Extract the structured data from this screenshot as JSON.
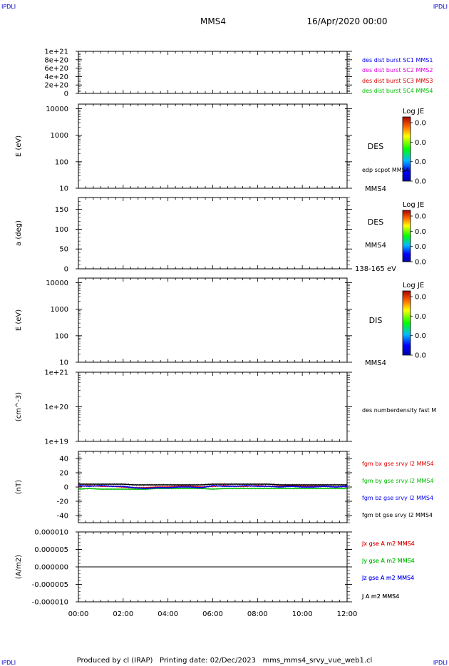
{
  "corner_labels": {
    "top_left": "IPDLI",
    "top_right": "IPDLI",
    "bottom_left": "IPDLI",
    "bottom_right": "IPDLI"
  },
  "header": {
    "spacecraft": "MMS4",
    "date": "16/Apr/2020 00:00"
  },
  "footer": "Produced by cl (IRAP)   Printing date: 02/Dec/2023   mms_mms4_srvy_vue_web1.cl",
  "colors": {
    "blue": "#0000ee",
    "magenta": "#dd00dd",
    "red": "#dd0000",
    "green": "#00bb00",
    "black": "#000000"
  },
  "x_axis": {
    "tick_labels": [
      "00:00",
      "02:00",
      "04:00",
      "06:00",
      "08:00",
      "10:00",
      "12:00"
    ],
    "range_hours": [
      0,
      12
    ]
  },
  "colorbar": {
    "title": "Log JE",
    "labels": [
      "0.0",
      "0.0",
      "0.0",
      "0.0"
    ]
  },
  "chart_data": [
    {
      "type": "line",
      "panel": "dist_burst",
      "ylabel": "",
      "ylim": [
        0,
        1e+21
      ],
      "y_tick_labels": [
        "1e+21",
        "8e+20",
        "6e+20",
        "4e+20",
        "2e+20",
        "0"
      ],
      "series": [
        {
          "name": "des dist burst SC1 MMS1",
          "color": "blue"
        },
        {
          "name": "des dist burst SC2 MMS2",
          "color": "magenta"
        },
        {
          "name": "des dist burst SC3 MMS3",
          "color": "red"
        },
        {
          "name": "des dist burst SC4 MMS4",
          "color": "green"
        }
      ],
      "x": [
        0,
        12
      ],
      "values": [
        0,
        0
      ],
      "line_style": "dashed"
    },
    {
      "type": "heatmap",
      "panel": "des_energy",
      "ylabel": "E (eV)",
      "scale": "log",
      "ylim": [
        10,
        15000
      ],
      "y_tick_labels": [
        "10000",
        "1000",
        "100",
        "10"
      ],
      "labels": [
        "DES",
        "edp scpot MMS4",
        "MMS4"
      ]
    },
    {
      "type": "heatmap",
      "panel": "des_pitch_angle",
      "ylabel": "a (deg)",
      "ylim": [
        0,
        180
      ],
      "y_tick_labels": [
        "150",
        "100",
        "50",
        "0"
      ],
      "labels": [
        "DES",
        "MMS4",
        "138-165 eV"
      ]
    },
    {
      "type": "heatmap",
      "panel": "dis_energy",
      "ylabel": "E (eV)",
      "scale": "log",
      "ylim": [
        10,
        15000
      ],
      "y_tick_labels": [
        "10000",
        "1000",
        "100",
        "10"
      ],
      "labels": [
        "DIS",
        "MMS4"
      ]
    },
    {
      "type": "line",
      "panel": "number_density",
      "ylabel": "(cm^-3)",
      "scale": "log",
      "ylim": [
        1e+19,
        1e+21
      ],
      "y_tick_labels": [
        "1e+21",
        "1e+20",
        "1e+19"
      ],
      "series": [
        {
          "name": "des numberdensity fast M",
          "color": "black"
        }
      ]
    },
    {
      "type": "line",
      "panel": "fgm",
      "ylabel": "(nT)",
      "ylim": [
        -50,
        50
      ],
      "y_tick_labels": [
        "40",
        "20",
        "0",
        "-20",
        "-40"
      ],
      "x": [
        0,
        0.5,
        1,
        1.5,
        2,
        2.5,
        3,
        3.5,
        4,
        4.5,
        5,
        5.5,
        6,
        6.5,
        7,
        7.5,
        8,
        8.5,
        9,
        9.5,
        10,
        10.5,
        11,
        11.5,
        12
      ],
      "series": [
        {
          "name": "fgm bx gse srvy l2 MMS4",
          "color": "red",
          "values": [
            1,
            2,
            1,
            1,
            0,
            -1,
            -1,
            0,
            0,
            1,
            1,
            0,
            1,
            2,
            1,
            1,
            2,
            1,
            1,
            2,
            1,
            1,
            1,
            0,
            1
          ]
        },
        {
          "name": "fgm by gse srvy l2 MMS4",
          "color": "green",
          "values": [
            -3,
            -2,
            -3,
            -3,
            -3,
            -3,
            -3,
            -2,
            -2,
            -2,
            -2,
            -2,
            -3,
            -2,
            -2,
            -2,
            -2,
            -2,
            -2,
            -2,
            -2,
            -2,
            -2,
            -2,
            -2
          ]
        },
        {
          "name": "fgm bz gse srvy l2 MMS4",
          "color": "blue",
          "values": [
            2,
            1,
            2,
            1,
            1,
            -1,
            -2,
            -1,
            -1,
            0,
            0,
            -1,
            2,
            1,
            1,
            2,
            1,
            1,
            0,
            1,
            0,
            0,
            1,
            0,
            1
          ]
        },
        {
          "name": "fgm bt gse srvy l2 MMS4",
          "color": "black",
          "values": [
            4,
            4,
            4,
            4,
            4,
            3,
            3,
            3,
            3,
            3,
            3,
            3,
            4,
            4,
            4,
            4,
            4,
            4,
            3,
            3,
            3,
            3,
            3,
            3,
            3
          ]
        }
      ]
    },
    {
      "type": "line",
      "panel": "current_density",
      "ylabel": "(A/m2)",
      "ylim": [
        -1e-05,
        1e-05
      ],
      "y_tick_labels": [
        "0.000010",
        "0.000005",
        "0.000000",
        "-0.000005",
        "-0.000010"
      ],
      "x": [
        0,
        12
      ],
      "series": [
        {
          "name": "Jx gse A m2 MMS4",
          "color": "red"
        },
        {
          "name": "Jy gse A m2 MMS4",
          "color": "green"
        },
        {
          "name": "Jz gse A m2 MMS4",
          "color": "blue"
        },
        {
          "name": "J A m2 MMS4",
          "color": "black",
          "values": [
            0,
            0
          ]
        }
      ]
    }
  ]
}
